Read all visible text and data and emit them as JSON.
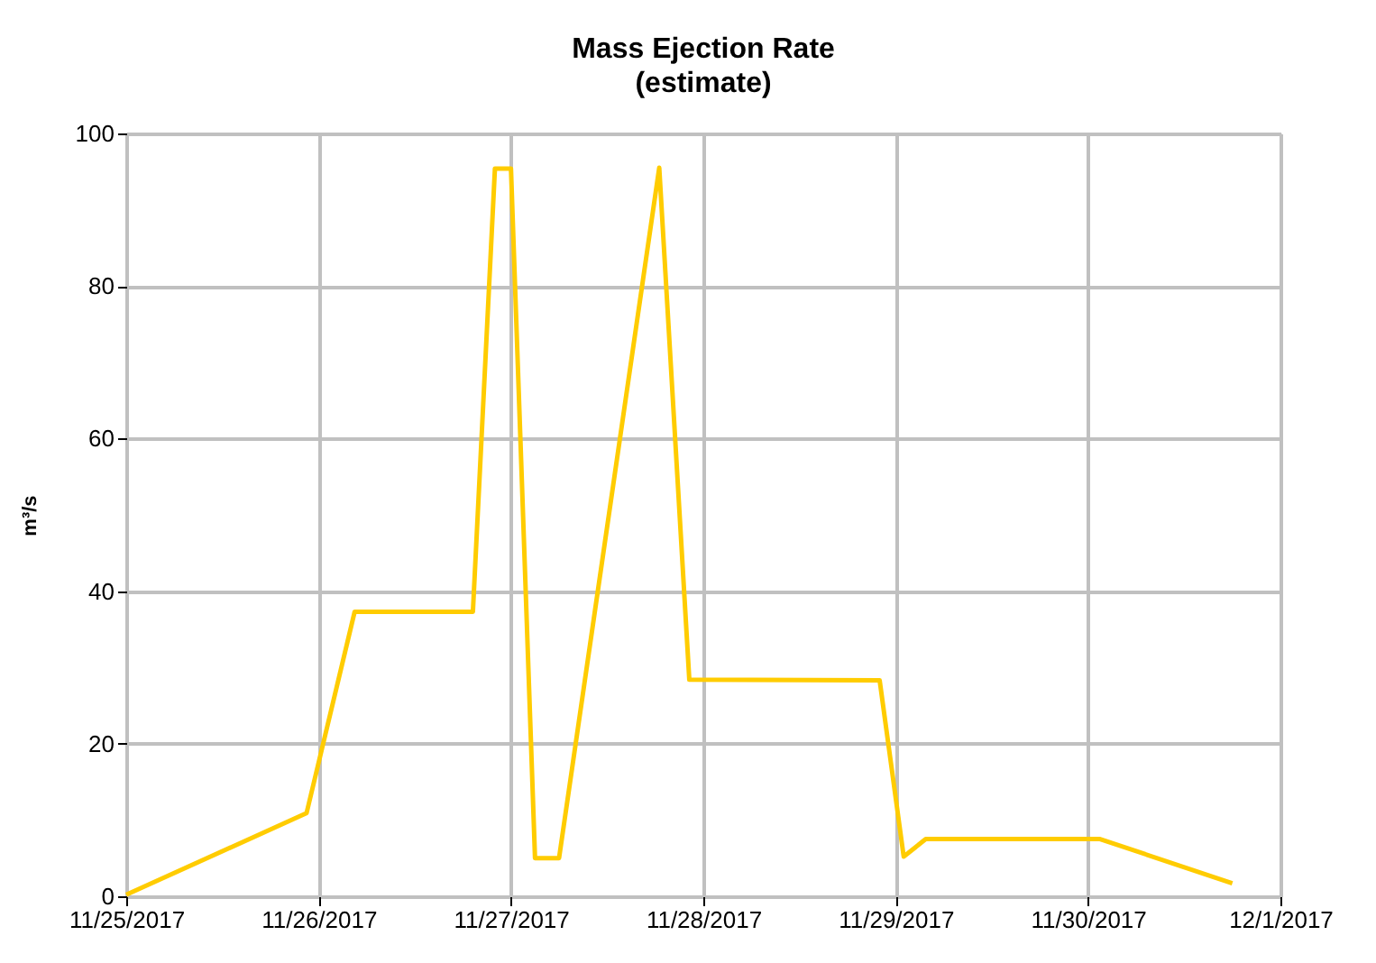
{
  "chart_data": {
    "type": "line",
    "title": "Mass Ejection Rate",
    "subtitle": "(estimate)",
    "ylabel": "m³/s",
    "x": [
      "2017-11-25T00:00",
      "2017-11-25T22:30",
      "2017-11-26T04:30",
      "2017-11-26T19:15",
      "2017-11-26T22:00",
      "2017-11-27T00:00",
      "2017-11-27T03:00",
      "2017-11-27T06:00",
      "2017-11-27T18:30",
      "2017-11-27T22:15",
      "2017-11-28T22:00",
      "2017-11-29T01:00",
      "2017-11-29T03:45",
      "2017-11-30T01:30",
      "2017-11-30T18:00"
    ],
    "series": [
      {
        "color": "#ffcc00",
        "values": [
          0.2,
          10.9,
          37.3,
          37.3,
          95.4,
          95.4,
          5.0,
          5.0,
          95.5,
          28.4,
          28.3,
          5.2,
          7.5,
          7.5,
          1.7
        ]
      }
    ],
    "xlim": [
      "2017-11-25",
      "2017-12-01"
    ],
    "xticks": [
      {
        "value": "2017-11-25",
        "label": "11/25/2017"
      },
      {
        "value": "2017-11-26",
        "label": "11/26/2017"
      },
      {
        "value": "2017-11-27",
        "label": "11/27/2017"
      },
      {
        "value": "2017-11-28",
        "label": "11/28/2017"
      },
      {
        "value": "2017-11-29",
        "label": "11/29/2017"
      },
      {
        "value": "2017-11-30",
        "label": "11/30/2017"
      },
      {
        "value": "2017-12-01",
        "label": "12/1/2017"
      }
    ],
    "ylim": [
      0,
      100
    ],
    "yticks": [
      0,
      20,
      40,
      60,
      80,
      100
    ],
    "grid": true,
    "marker": "none",
    "line_style": "solid"
  }
}
